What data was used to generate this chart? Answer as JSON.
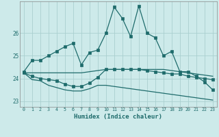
{
  "xlabel": "Humidex (Indice chaleur)",
  "background_color": "#cdeaea",
  "grid_color": "#aacfcf",
  "line_color": "#1e6b6b",
  "xlim": [
    -0.5,
    23.5
  ],
  "ylim": [
    22.75,
    27.4
  ],
  "yticks": [
    23,
    24,
    25,
    26
  ],
  "xticks": [
    0,
    1,
    2,
    3,
    4,
    5,
    6,
    7,
    8,
    9,
    10,
    11,
    12,
    13,
    14,
    15,
    16,
    17,
    18,
    19,
    20,
    21,
    22,
    23
  ],
  "series1_x": [
    0,
    1,
    2,
    3,
    4,
    5,
    6,
    7,
    8,
    9,
    10,
    11,
    12,
    13,
    14,
    15,
    16,
    17,
    18,
    19,
    20,
    21,
    22,
    23
  ],
  "series1_y": [
    24.3,
    24.8,
    24.8,
    25.0,
    25.2,
    25.4,
    25.55,
    24.6,
    25.15,
    25.25,
    26.0,
    27.15,
    26.65,
    25.85,
    27.2,
    26.0,
    25.8,
    25.0,
    25.2,
    24.3,
    24.3,
    24.1,
    23.85,
    23.5
  ],
  "series2_x": [
    0,
    1,
    2,
    3,
    4,
    5,
    6,
    7,
    8,
    9,
    10,
    11,
    12,
    13,
    14,
    15,
    16,
    17,
    18,
    19,
    20,
    21,
    22,
    23
  ],
  "series2_y": [
    24.25,
    24.25,
    24.25,
    24.25,
    24.25,
    24.25,
    24.25,
    24.25,
    24.3,
    24.35,
    24.4,
    24.4,
    24.4,
    24.4,
    24.4,
    24.4,
    24.4,
    24.4,
    24.35,
    24.3,
    24.25,
    24.2,
    24.15,
    24.1
  ],
  "series3_x": [
    0,
    1,
    2,
    3,
    4,
    5,
    6,
    7,
    8,
    9,
    10,
    11,
    12,
    13,
    14,
    15,
    16,
    17,
    18,
    19,
    20,
    21,
    22,
    23
  ],
  "series3_y": [
    24.25,
    24.1,
    24.0,
    23.95,
    23.9,
    23.75,
    23.65,
    23.65,
    23.8,
    24.05,
    24.4,
    24.4,
    24.4,
    24.4,
    24.4,
    24.35,
    24.3,
    24.25,
    24.2,
    24.2,
    24.1,
    24.05,
    24.0,
    23.95
  ],
  "series4_x": [
    0,
    1,
    2,
    3,
    4,
    5,
    6,
    7,
    8,
    9,
    10,
    11,
    12,
    13,
    14,
    15,
    16,
    17,
    18,
    19,
    20,
    21,
    22,
    23
  ],
  "series4_y": [
    24.25,
    23.95,
    23.9,
    23.7,
    23.6,
    23.5,
    23.45,
    23.45,
    23.55,
    23.7,
    23.7,
    23.65,
    23.6,
    23.55,
    23.5,
    23.45,
    23.4,
    23.35,
    23.3,
    23.25,
    23.2,
    23.15,
    23.1,
    23.05
  ],
  "marker_series1": true,
  "marker_series2": false,
  "marker_series3": true,
  "marker_series4": false
}
